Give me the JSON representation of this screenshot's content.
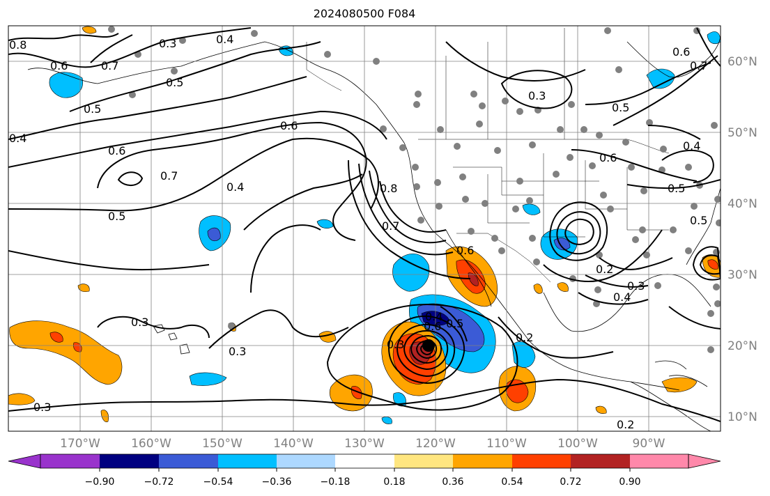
{
  "title": "2024080500 F084",
  "map": {
    "projection": "cylindrical",
    "lon_range": [
      -178,
      -78
    ],
    "lat_range": [
      8,
      65
    ],
    "lon_labels": [
      "170°W",
      "160°W",
      "150°W",
      "140°W",
      "130°W",
      "120°W",
      "110°W",
      "100°W",
      "90°W"
    ],
    "lat_labels": [
      "60°N",
      "50°N",
      "40°N",
      "30°N",
      "20°N",
      "10°N"
    ],
    "grid": true,
    "contour_labels": [
      "0.8",
      "0.3",
      "0.4",
      "0.6",
      "0.7",
      "0.5",
      "0.4",
      "0.6",
      "0.6",
      "0.7",
      "0.4",
      "0.5",
      "0.5",
      "0.3",
      "0.6",
      "0.8",
      "0.7",
      "0.3",
      "0.3",
      "0.6",
      "0.5",
      "0.4",
      "0.3",
      "0.5",
      "0.6",
      "0.7",
      "0.6",
      "0.5",
      "0.4",
      "0.2",
      "0.3",
      "0.4",
      "0.5",
      "0.2",
      "0.2",
      "0.3"
    ],
    "storm_center": {
      "lon": -121,
      "lat": 20
    }
  },
  "colorbar": {
    "tick_labels": [
      "−0.90",
      "−0.72",
      "−0.54",
      "−0.36",
      "−0.18",
      "0.18",
      "0.36",
      "0.54",
      "0.72",
      "0.90"
    ],
    "colors": [
      "#9933cc",
      "#000080",
      "#3b5bd6",
      "#00bfff",
      "#add8ff",
      "#ffffff",
      "#ffe680",
      "#ffa500",
      "#ff4000",
      "#b22222",
      "#ff88aa"
    ]
  }
}
